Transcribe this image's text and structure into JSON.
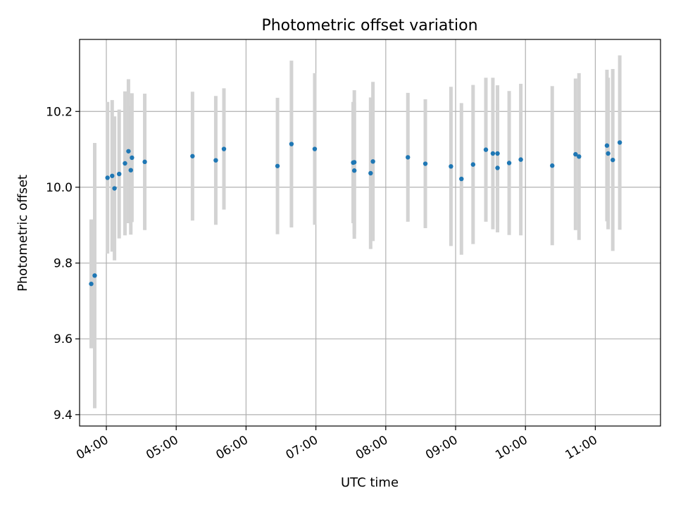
{
  "chart_data": {
    "type": "scatter",
    "title": "Photometric offset variation",
    "xlabel": "UTC time",
    "ylabel": "Photometric offset",
    "x_is_time": true,
    "xlim": [
      "03:37",
      "11:56"
    ],
    "ylim": [
      9.37,
      10.39
    ],
    "xticks": [
      "04:00",
      "05:00",
      "06:00",
      "07:00",
      "08:00",
      "09:00",
      "10:00",
      "11:00"
    ],
    "yticks": [
      9.4,
      9.6,
      9.8,
      10.0,
      10.2
    ],
    "grid": true,
    "marker_color": "#1f77b4",
    "errorbar_color": "#d3d3d3",
    "series": [
      {
        "points": [
          {
            "x": "03:47",
            "y": 9.745,
            "err": 0.17
          },
          {
            "x": "03:50",
            "y": 9.767,
            "err": 0.35
          },
          {
            "x": "04:01",
            "y": 10.025,
            "err": 0.2
          },
          {
            "x": "04:05",
            "y": 10.03,
            "err": 0.2
          },
          {
            "x": "04:07",
            "y": 9.997,
            "err": 0.19
          },
          {
            "x": "04:11",
            "y": 10.035,
            "err": 0.17
          },
          {
            "x": "04:16",
            "y": 10.063,
            "err": 0.19
          },
          {
            "x": "04:19",
            "y": 10.095,
            "err": 0.19
          },
          {
            "x": "04:21",
            "y": 10.045,
            "err": 0.17
          },
          {
            "x": "04:22",
            "y": 10.078,
            "err": 0.17
          },
          {
            "x": "04:33",
            "y": 10.067,
            "err": 0.18
          },
          {
            "x": "05:14",
            "y": 10.082,
            "err": 0.17
          },
          {
            "x": "05:34",
            "y": 10.071,
            "err": 0.17
          },
          {
            "x": "05:41",
            "y": 10.101,
            "err": 0.16
          },
          {
            "x": "06:27",
            "y": 10.056,
            "err": 0.18
          },
          {
            "x": "06:39",
            "y": 10.114,
            "err": 0.22
          },
          {
            "x": "06:59",
            "y": 10.101,
            "err": 0.2
          },
          {
            "x": "07:32",
            "y": 10.065,
            "err": 0.16
          },
          {
            "x": "07:33",
            "y": 10.066,
            "err": 0.19
          },
          {
            "x": "07:33",
            "y": 10.044,
            "err": 0.18
          },
          {
            "x": "07:47",
            "y": 10.037,
            "err": 0.2
          },
          {
            "x": "07:49",
            "y": 10.068,
            "err": 0.21
          },
          {
            "x": "08:19",
            "y": 10.079,
            "err": 0.17
          },
          {
            "x": "08:34",
            "y": 10.062,
            "err": 0.17
          },
          {
            "x": "08:56",
            "y": 10.055,
            "err": 0.21
          },
          {
            "x": "09:05",
            "y": 10.022,
            "err": 0.2
          },
          {
            "x": "09:15",
            "y": 10.06,
            "err": 0.21
          },
          {
            "x": "09:26",
            "y": 10.099,
            "err": 0.19
          },
          {
            "x": "09:32",
            "y": 10.089,
            "err": 0.2
          },
          {
            "x": "09:36",
            "y": 10.089,
            "err": 0.18
          },
          {
            "x": "09:36",
            "y": 10.051,
            "err": 0.17
          },
          {
            "x": "09:46",
            "y": 10.064,
            "err": 0.19
          },
          {
            "x": "09:56",
            "y": 10.073,
            "err": 0.2
          },
          {
            "x": "10:23",
            "y": 10.057,
            "err": 0.21
          },
          {
            "x": "10:43",
            "y": 10.087,
            "err": 0.2
          },
          {
            "x": "10:46",
            "y": 10.081,
            "err": 0.22
          },
          {
            "x": "11:10",
            "y": 10.11,
            "err": 0.2
          },
          {
            "x": "11:11",
            "y": 10.089,
            "err": 0.2
          },
          {
            "x": "11:15",
            "y": 10.072,
            "err": 0.24
          },
          {
            "x": "11:21",
            "y": 10.118,
            "err": 0.23
          }
        ]
      }
    ]
  }
}
